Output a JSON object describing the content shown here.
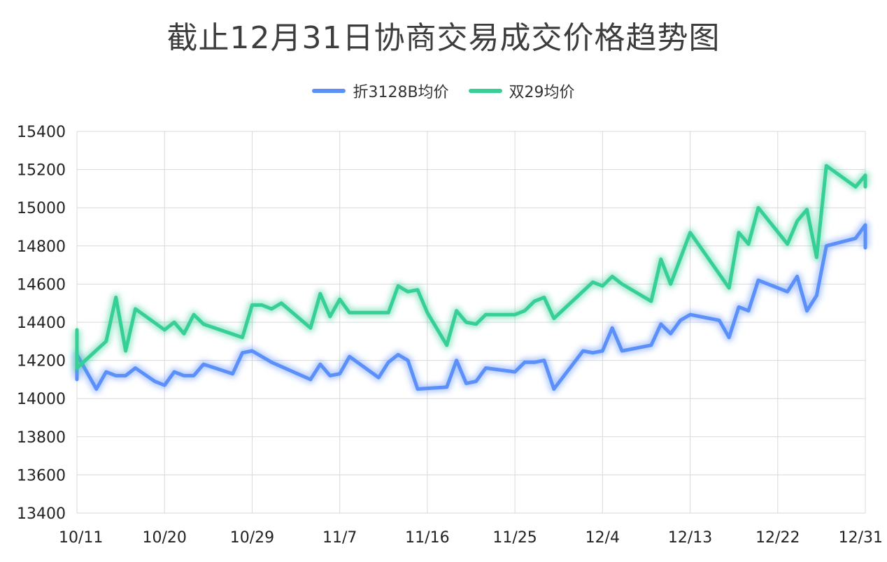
{
  "chart_data": {
    "type": "line",
    "title": "截止12月31日协商交易成交价格趋势图",
    "xlabel": "",
    "ylabel": "",
    "x_ticks": [
      "10/11",
      "10/20",
      "10/29",
      "11/7",
      "11/16",
      "11/25",
      "12/4",
      "12/13",
      "12/22",
      "12/31"
    ],
    "x_range_days": [
      0,
      81
    ],
    "ylim": [
      13400,
      15400
    ],
    "y_ticks": [
      13400,
      13600,
      13800,
      14000,
      14200,
      14400,
      14600,
      14800,
      15000,
      15200,
      15400
    ],
    "grid": true,
    "legend_position": "top-center",
    "series": [
      {
        "name": "折3128B均价",
        "color": "#5b8ff9",
        "points": [
          [
            "10/11",
            14100
          ],
          [
            "10/11",
            14230
          ],
          [
            "10/13",
            14050
          ],
          [
            "10/14",
            14140
          ],
          [
            "10/15",
            14120
          ],
          [
            "10/16",
            14120
          ],
          [
            "10/17",
            14160
          ],
          [
            "10/19",
            14090
          ],
          [
            "10/20",
            14070
          ],
          [
            "10/21",
            14140
          ],
          [
            "10/22",
            14120
          ],
          [
            "10/23",
            14120
          ],
          [
            "10/24",
            14180
          ],
          [
            "10/27",
            14130
          ],
          [
            "10/28",
            14240
          ],
          [
            "10/29",
            14250
          ],
          [
            "10/31",
            14190
          ],
          [
            "11/4",
            14100
          ],
          [
            "11/5",
            14180
          ],
          [
            "11/6",
            14120
          ],
          [
            "11/7",
            14130
          ],
          [
            "11/8",
            14220
          ],
          [
            "11/11",
            14110
          ],
          [
            "11/12",
            14190
          ],
          [
            "11/13",
            14230
          ],
          [
            "11/14",
            14200
          ],
          [
            "11/15",
            14050
          ],
          [
            "11/18",
            14060
          ],
          [
            "11/19",
            14200
          ],
          [
            "11/20",
            14080
          ],
          [
            "11/21",
            14090
          ],
          [
            "11/22",
            14160
          ],
          [
            "11/25",
            14140
          ],
          [
            "11/26",
            14190
          ],
          [
            "11/27",
            14190
          ],
          [
            "11/28",
            14200
          ],
          [
            "11/29",
            14050
          ],
          [
            "12/2",
            14250
          ],
          [
            "12/3",
            14240
          ],
          [
            "12/4",
            14250
          ],
          [
            "12/5",
            14370
          ],
          [
            "12/6",
            14250
          ],
          [
            "12/9",
            14280
          ],
          [
            "12/10",
            14390
          ],
          [
            "12/11",
            14340
          ],
          [
            "12/12",
            14410
          ],
          [
            "12/13",
            14440
          ],
          [
            "12/16",
            14410
          ],
          [
            "12/17",
            14320
          ],
          [
            "12/18",
            14480
          ],
          [
            "12/19",
            14460
          ],
          [
            "12/20",
            14620
          ],
          [
            "12/23",
            14560
          ],
          [
            "12/24",
            14640
          ],
          [
            "12/25",
            14460
          ],
          [
            "12/26",
            14540
          ],
          [
            "12/27",
            14800
          ],
          [
            "12/30",
            14840
          ],
          [
            "12/31",
            14910
          ],
          [
            "12/31",
            14790
          ]
        ]
      },
      {
        "name": "双29均价",
        "color": "#36cf96",
        "points": [
          [
            "10/11",
            14360
          ],
          [
            "10/11",
            14160
          ],
          [
            "10/14",
            14300
          ],
          [
            "10/15",
            14530
          ],
          [
            "10/16",
            14250
          ],
          [
            "10/17",
            14470
          ],
          [
            "10/20",
            14360
          ],
          [
            "10/21",
            14400
          ],
          [
            "10/22",
            14340
          ],
          [
            "10/23",
            14440
          ],
          [
            "10/24",
            14390
          ],
          [
            "10/28",
            14320
          ],
          [
            "10/29",
            14490
          ],
          [
            "10/30",
            14490
          ],
          [
            "10/31",
            14470
          ],
          [
            "11/1",
            14500
          ],
          [
            "11/4",
            14370
          ],
          [
            "11/5",
            14550
          ],
          [
            "11/6",
            14430
          ],
          [
            "11/7",
            14520
          ],
          [
            "11/8",
            14450
          ],
          [
            "11/12",
            14450
          ],
          [
            "11/13",
            14590
          ],
          [
            "11/14",
            14560
          ],
          [
            "11/15",
            14570
          ],
          [
            "11/16",
            14450
          ],
          [
            "11/18",
            14280
          ],
          [
            "11/19",
            14460
          ],
          [
            "11/20",
            14400
          ],
          [
            "11/21",
            14390
          ],
          [
            "11/22",
            14440
          ],
          [
            "11/25",
            14440
          ],
          [
            "11/26",
            14460
          ],
          [
            "11/27",
            14510
          ],
          [
            "11/28",
            14530
          ],
          [
            "11/29",
            14420
          ],
          [
            "12/3",
            14610
          ],
          [
            "12/4",
            14590
          ],
          [
            "12/5",
            14640
          ],
          [
            "12/6",
            14600
          ],
          [
            "12/9",
            14510
          ],
          [
            "12/10",
            14730
          ],
          [
            "12/11",
            14600
          ],
          [
            "12/13",
            14870
          ],
          [
            "12/17",
            14580
          ],
          [
            "12/18",
            14870
          ],
          [
            "12/19",
            14810
          ],
          [
            "12/20",
            15000
          ],
          [
            "12/23",
            14810
          ],
          [
            "12/24",
            14930
          ],
          [
            "12/25",
            14990
          ],
          [
            "12/26",
            14740
          ],
          [
            "12/27",
            15220
          ],
          [
            "12/30",
            15110
          ],
          [
            "12/31",
            15170
          ],
          [
            "12/31",
            15110
          ]
        ]
      }
    ]
  }
}
